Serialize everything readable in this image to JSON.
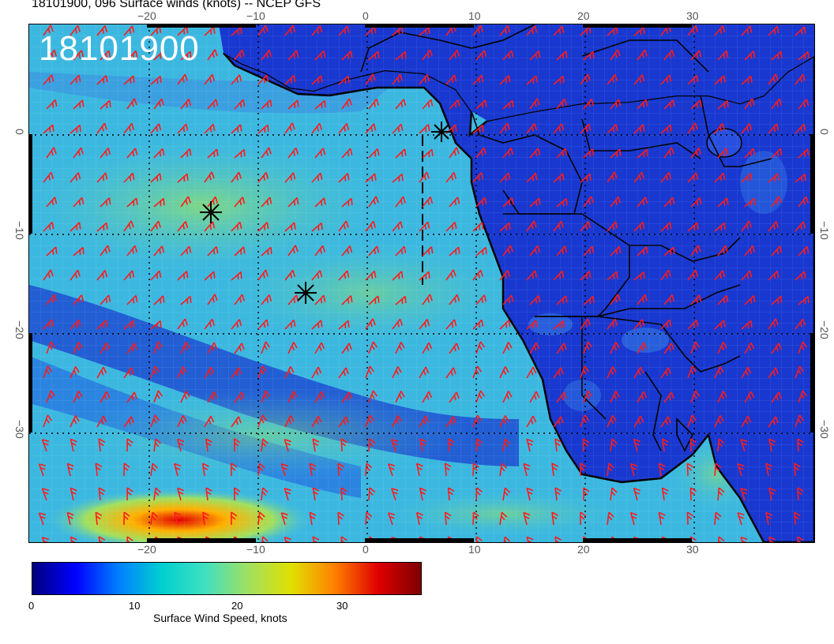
{
  "title": "18101900, 096 Surface winds (knots) -- NCEP GFS",
  "stamp": "18101900",
  "colorbar": {
    "label": "Surface Wind Speed, knots",
    "ticks": [
      "0",
      "10",
      "20",
      "30"
    ],
    "range": [
      0,
      38
    ],
    "colors": [
      "#00007f",
      "#0000ff",
      "#0080ff",
      "#00d0d0",
      "#40e0c0",
      "#a0e060",
      "#e0e000",
      "#ff8000",
      "#e00000",
      "#7f0000"
    ]
  },
  "axes": {
    "lon_top": [
      "−20",
      "−10",
      "0",
      "10",
      "20",
      "30"
    ],
    "lon_bottom": [
      "−20",
      "−10",
      "0",
      "10",
      "20",
      "30"
    ],
    "lat_left": [
      "0",
      "−10",
      "−20",
      "−30"
    ],
    "lat_right": [
      "0",
      "−10",
      "−20",
      "−30"
    ]
  },
  "colors": {
    "barb": "#ff1a1a",
    "coast": "#000000",
    "ocean_base": "#40c0e0",
    "land_base": "#1030d0"
  }
}
